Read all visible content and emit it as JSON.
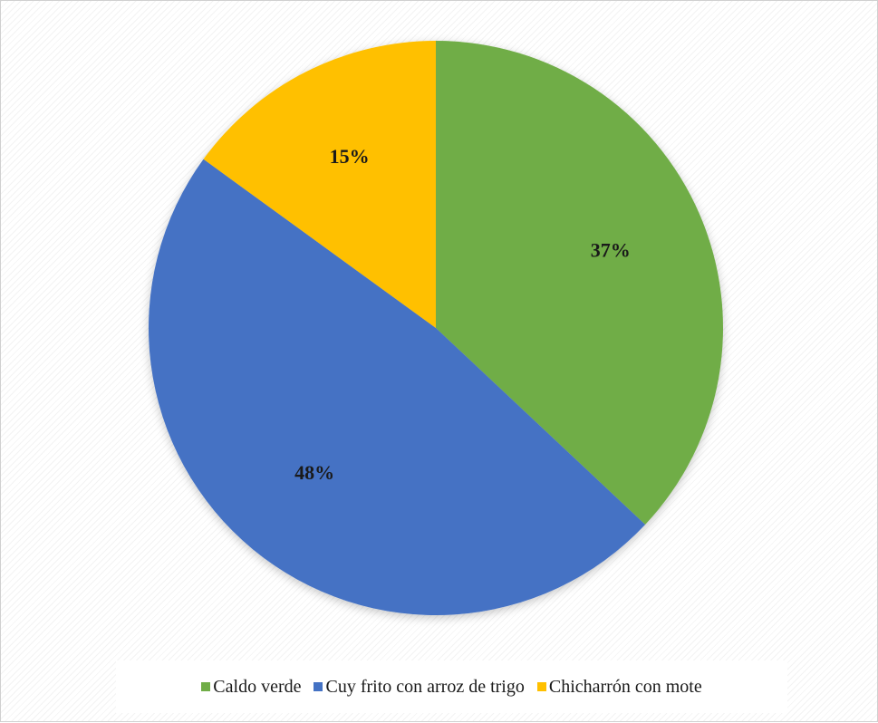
{
  "chart_data": {
    "type": "pie",
    "title": "",
    "legend_position": "bottom",
    "slices": [
      {
        "name": "Caldo verde",
        "value": 37,
        "label": "37%",
        "color": "#70AD47"
      },
      {
        "name": "Cuy frito con arroz de trigo",
        "value": 48,
        "label": "48%",
        "color": "#4472C4"
      },
      {
        "name": "Chicharrón con mote",
        "value": 15,
        "label": "15%",
        "color": "#FFC000"
      }
    ]
  }
}
